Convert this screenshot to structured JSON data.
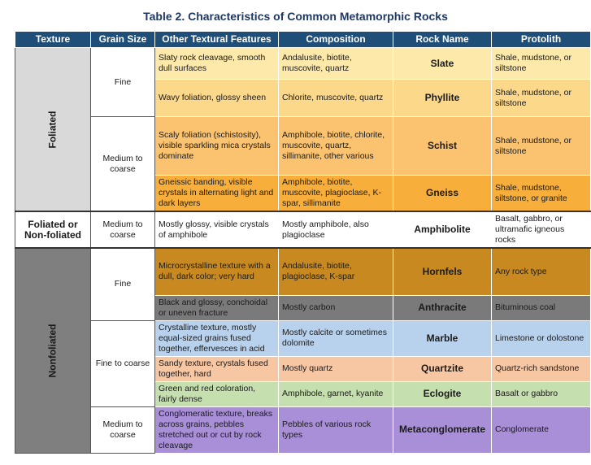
{
  "title": "Table 2. Characteristics of Common Metamorphic Rocks",
  "headers": [
    "Texture",
    "Grain Size",
    "Other Textural Features",
    "Composition",
    "Rock Name",
    "Protolith"
  ],
  "textures": {
    "foliated": "Foliated",
    "both": "Foliated or Non-foliated",
    "nonfoliated": "Nonfoliated"
  },
  "grains": {
    "fine": "Fine",
    "medium_coarse": "Medium to coarse",
    "medium_coarse_2": "Medium to coarse",
    "fine_2": "Fine",
    "fine_to_coarse": "Fine to coarse",
    "medium_coarse_3": "Medium to coarse"
  },
  "rows": [
    {
      "features": "Slaty rock cleavage, smooth dull surfaces",
      "composition": "Andalusite, biotite, muscovite, quartz",
      "rock": "Slate",
      "protolith": "Shale, mudstone, or siltstone"
    },
    {
      "features": "Wavy foliation, glossy sheen",
      "composition": "Chlorite, muscovite, quartz",
      "rock": "Phyllite",
      "protolith": "Shale, mudstone, or siltstone"
    },
    {
      "features": "Scaly foliation (schistosity), visible sparkling mica crystals dominate",
      "composition": "Amphibole, biotite, chlorite, muscovite, quartz, sillimanite, other various",
      "rock": "Schist",
      "protolith": "Shale, mudstone, or siltstone"
    },
    {
      "features": "Gneissic banding, visible crystals in alternating light and dark layers",
      "composition": "Amphibole, biotite, muscovite, plagioclase, K-spar, sillimanite",
      "rock": "Gneiss",
      "protolith": "Shale, mudstone, siltstone, or granite"
    },
    {
      "features": "Mostly glossy, visible crystals of amphibole",
      "composition": "Mostly amphibole, also plagioclase",
      "rock": "Amphibolite",
      "protolith": "Basalt, gabbro, or ultramafic igneous rocks"
    },
    {
      "features": "Microcrystalline texture with a dull, dark color; very hard",
      "composition": "Andalusite, biotite, plagioclase, K-spar",
      "rock": "Hornfels",
      "protolith": "Any rock type"
    },
    {
      "features": "Black and glossy, conchoidal or uneven fracture",
      "composition": "Mostly carbon",
      "rock": "Anthracite",
      "protolith": "Bituminous coal"
    },
    {
      "features": "Crystalline texture, mostly equal-sized grains fused together, effervesces in acid",
      "composition": "Mostly calcite or sometimes dolomite",
      "rock": "Marble",
      "protolith": "Limestone or dolostone"
    },
    {
      "features": "Sandy texture, crystals fused together, hard",
      "composition": "Mostly quartz",
      "rock": "Quartzite",
      "protolith": "Quartz-rich sandstone"
    },
    {
      "features": "Green and red coloration, fairly dense",
      "composition": "Amphibole, garnet, kyanite",
      "rock": "Eclogite",
      "protolith": "Basalt or gabbro"
    },
    {
      "features": "Conglomeratic texture, breaks across grains, pebbles stretched out or cut by rock cleavage",
      "composition": "Pebbles of various rock types",
      "rock": "Metaconglomerate",
      "protolith": "Conglomerate"
    }
  ]
}
